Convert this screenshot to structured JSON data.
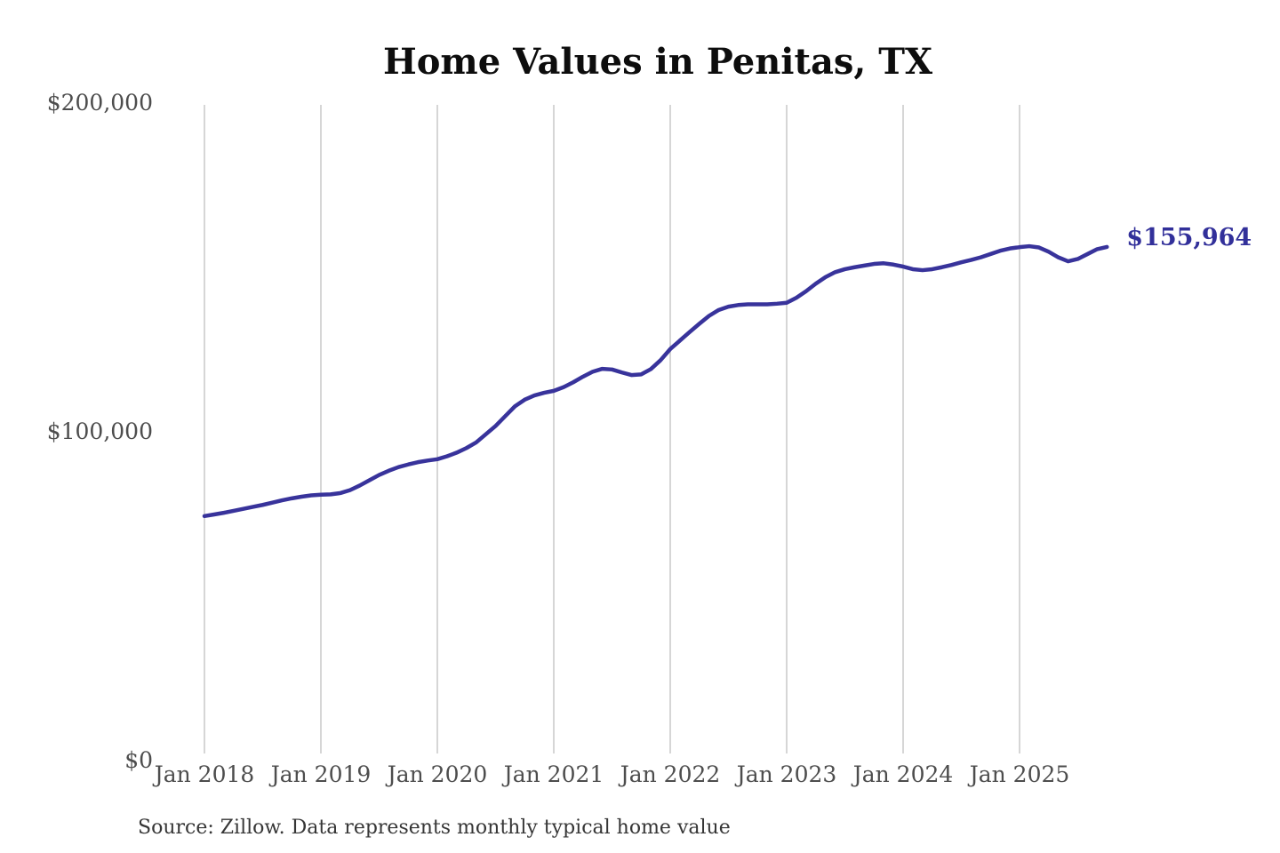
{
  "title": "Home Values in Penitas, TX",
  "source_note": "Source: Zillow. Data represents monthly typical home value",
  "colors": {
    "line": "#38339b",
    "end_label_text": "#32309a",
    "grid": "#c9c9c9",
    "tick_text": "#4d4d4d",
    "title_text": "#0d0d0d",
    "source_text": "#363636",
    "background": "#ffffff"
  },
  "chart_data": {
    "type": "line",
    "title": "Home Values in Penitas, TX",
    "xlabel": "",
    "ylabel": "",
    "ylim": [
      0,
      200000
    ],
    "grid": "vertical-only",
    "legend": "none",
    "y_tick_labels": [
      "$0",
      "$100,000",
      "$200,000"
    ],
    "y_tick_values": [
      0,
      100000,
      200000
    ],
    "x_tick_labels": [
      "Jan 2018",
      "Jan 2019",
      "Jan 2020",
      "Jan 2021",
      "Jan 2022",
      "Jan 2023",
      "Jan 2024",
      "Jan 2025"
    ],
    "x_start_month": "2018-01",
    "x_end_month": "2025-10",
    "final_value": 155964,
    "final_value_label": "$155,964",
    "series": [
      {
        "name": "Monthly typical home value",
        "values": [
          74100,
          74600,
          75100,
          75700,
          76300,
          76900,
          77500,
          78200,
          78900,
          79500,
          80000,
          80400,
          80600,
          80700,
          81100,
          82000,
          83400,
          85000,
          86600,
          87900,
          89000,
          89800,
          90500,
          91000,
          91400,
          92300,
          93400,
          94800,
          96500,
          99000,
          101500,
          104500,
          107500,
          109500,
          110800,
          111600,
          112200,
          113300,
          114800,
          116500,
          118000,
          118900,
          118700,
          117800,
          117000,
          117200,
          118800,
          121500,
          124900,
          127500,
          130100,
          132600,
          135000,
          136800,
          137800,
          138300,
          138500,
          138500,
          138500,
          138700,
          139000,
          140500,
          142500,
          144800,
          146800,
          148300,
          149200,
          149800,
          150300,
          150800,
          151000,
          150600,
          150000,
          149200,
          148900,
          149200,
          149800,
          150500,
          151300,
          152000,
          152800,
          153800,
          154800,
          155500,
          155900,
          156200,
          155800,
          154500,
          152800,
          151600,
          152300,
          153800,
          155300,
          155964
        ]
      }
    ]
  }
}
